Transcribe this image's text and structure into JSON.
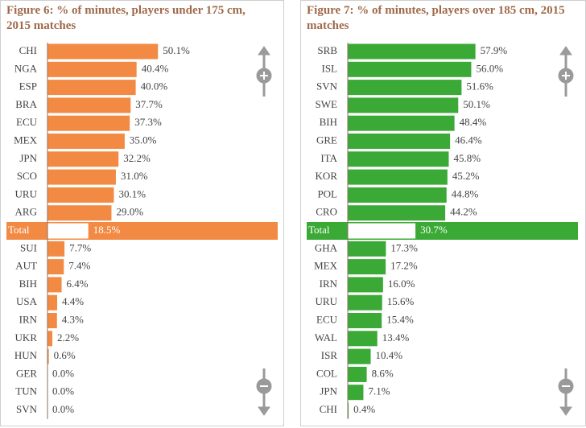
{
  "chart_data": [
    {
      "type": "bar",
      "title": "Figure 6: % of minutes, players under 175 cm, 2015 matches",
      "categories": [
        "CHI",
        "NGA",
        "ESP",
        "BRA",
        "ECU",
        "MEX",
        "JPN",
        "SCO",
        "URU",
        "ARG",
        "Total",
        "SUI",
        "AUT",
        "BIH",
        "USA",
        "IRN",
        "UKR",
        "HUN",
        "GER",
        "TUN",
        "SVN"
      ],
      "values": [
        50.1,
        40.4,
        40.0,
        37.7,
        37.3,
        35.0,
        32.2,
        31.0,
        30.1,
        29.0,
        18.5,
        7.7,
        7.4,
        6.4,
        4.4,
        4.3,
        2.2,
        0.6,
        0.0,
        0.0,
        0.0
      ],
      "value_labels": [
        "50.1%",
        "40.4%",
        "40.0%",
        "37.7%",
        "37.3%",
        "35.0%",
        "32.2%",
        "31.0%",
        "30.1%",
        "29.0%",
        "18.5%",
        "7.7%",
        "7.4%",
        "6.4%",
        "4.4%",
        "4.3%",
        "2.2%",
        "0.6%",
        "0.0%",
        "0.0%",
        "0.0%"
      ],
      "color": "#f28a44",
      "highlight": 10
    },
    {
      "type": "bar",
      "title": "Figure 7: % of minutes, players over 185 cm, 2015 matches",
      "categories": [
        "SRB",
        "ISL",
        "SVN",
        "SWE",
        "BIH",
        "GRE",
        "ITA",
        "KOR",
        "POL",
        "CRO",
        "Total",
        "GHA",
        "MEX",
        "IRN",
        "URU",
        "ECU",
        "WAL",
        "ISR",
        "COL",
        "JPN",
        "CHI"
      ],
      "values": [
        57.9,
        56.0,
        51.6,
        50.1,
        48.4,
        46.4,
        45.8,
        45.2,
        44.8,
        44.2,
        30.7,
        17.3,
        17.2,
        16.0,
        15.6,
        15.4,
        13.4,
        10.4,
        8.6,
        7.1,
        0.4
      ],
      "value_labels": [
        "57.9%",
        "56.0%",
        "51.6%",
        "50.1%",
        "48.4%",
        "46.4%",
        "45.8%",
        "45.2%",
        "44.8%",
        "44.2%",
        "30.7%",
        "17.3%",
        "17.2%",
        "16.0%",
        "15.6%",
        "15.4%",
        "13.4%",
        "10.4%",
        "8.6%",
        "7.1%",
        "0.4%"
      ],
      "color": "#3aa935",
      "highlight": 10
    }
  ]
}
